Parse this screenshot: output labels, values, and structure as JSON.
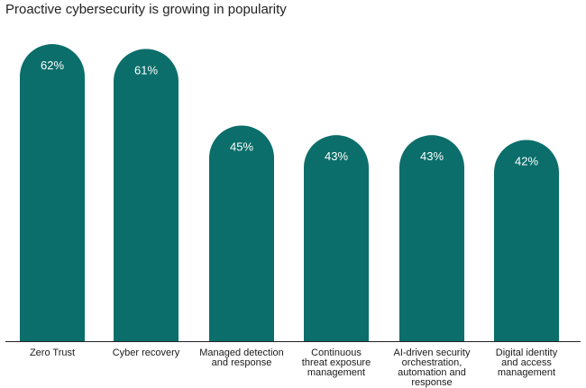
{
  "chart_data": {
    "type": "bar",
    "title": "Proactive cybersecurity is growing in popularity",
    "categories": [
      "Zero Trust",
      "Cyber recovery",
      "Managed detection and response",
      "Continuous threat exposure management",
      "AI-driven security orchestration, automation and response",
      "Digital identity and access management"
    ],
    "category_lines": [
      [
        "Zero Trust"
      ],
      [
        "Cyber recovery"
      ],
      [
        "Managed detection",
        "and response"
      ],
      [
        "Continuous",
        "threat exposure",
        "management"
      ],
      [
        "AI-driven security",
        "orchestration,",
        "automation and",
        "response"
      ],
      [
        "Digital identity",
        "and access",
        "management"
      ]
    ],
    "values": [
      62,
      61,
      45,
      43,
      43,
      42
    ],
    "value_labels": [
      "62%",
      "61%",
      "45%",
      "43%",
      "43%",
      "42%"
    ],
    "value_format": "percent",
    "ylim": [
      0,
      62
    ],
    "xlabel": "",
    "ylabel": "",
    "grid": false,
    "legend": "none",
    "colors": {
      "bar": "#0b6e6b",
      "baseline": "#222222"
    }
  }
}
